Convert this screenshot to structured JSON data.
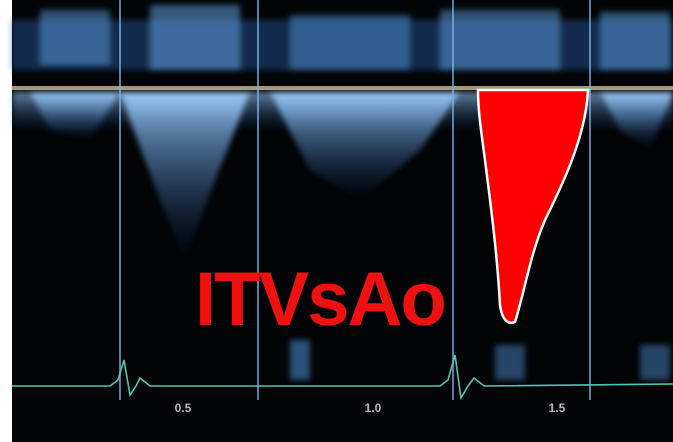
{
  "label": "ITVsAo",
  "time_axis": {
    "ticks": [
      "0.5",
      "1.0",
      "1.5"
    ]
  }
}
